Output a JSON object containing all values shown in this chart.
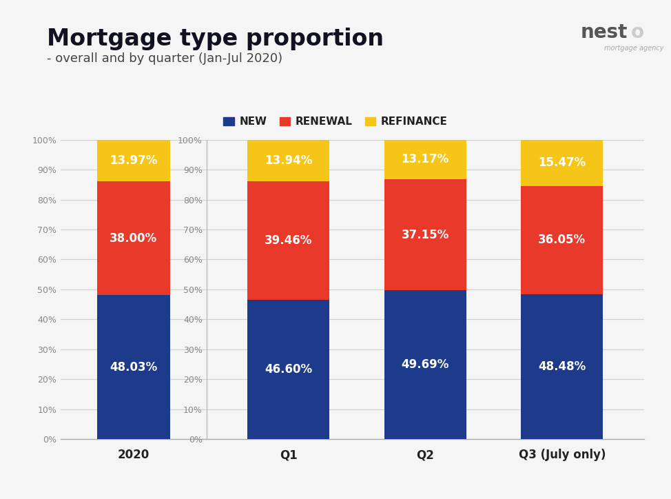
{
  "title": "Mortgage type proportion",
  "subtitle": "- overall and by quarter (Jan-Jul 2020)",
  "background_color": "#e8e8e8",
  "card_color": "#f5f5f5",
  "groups": [
    {
      "label": "2020",
      "new": 48.03,
      "renewal": 38.0,
      "refinance": 13.97
    },
    {
      "label": "Q1",
      "new": 46.6,
      "renewal": 39.46,
      "refinance": 13.94
    },
    {
      "label": "Q2",
      "new": 49.69,
      "renewal": 37.15,
      "refinance": 13.17
    },
    {
      "label": "Q3 (July only)",
      "new": 48.48,
      "renewal": 36.05,
      "refinance": 15.47
    }
  ],
  "colors": {
    "new": "#1e3a8a",
    "renewal": "#e8392b",
    "refinance": "#f5c518"
  },
  "legend_labels": [
    "NEW",
    "RENEWAL",
    "REFINANCE"
  ],
  "ylim": [
    0,
    100
  ],
  "yticks": [
    0,
    10,
    20,
    30,
    40,
    50,
    60,
    70,
    80,
    90,
    100
  ],
  "ytick_labels": [
    "0%",
    "10%",
    "20%",
    "30%",
    "40%",
    "50%",
    "60%",
    "70%",
    "80%",
    "90%",
    "100%"
  ],
  "label_fontsize": 12,
  "title_fontsize": 24,
  "subtitle_fontsize": 13,
  "bar_width": 0.6,
  "text_color_bars": "#ffffff",
  "tick_color": "#888888",
  "grid_color": "#d0d0d0",
  "bottom_line_color": "#aaaaaa",
  "xtick_fontsize": 12,
  "ytick_fontsize": 9
}
